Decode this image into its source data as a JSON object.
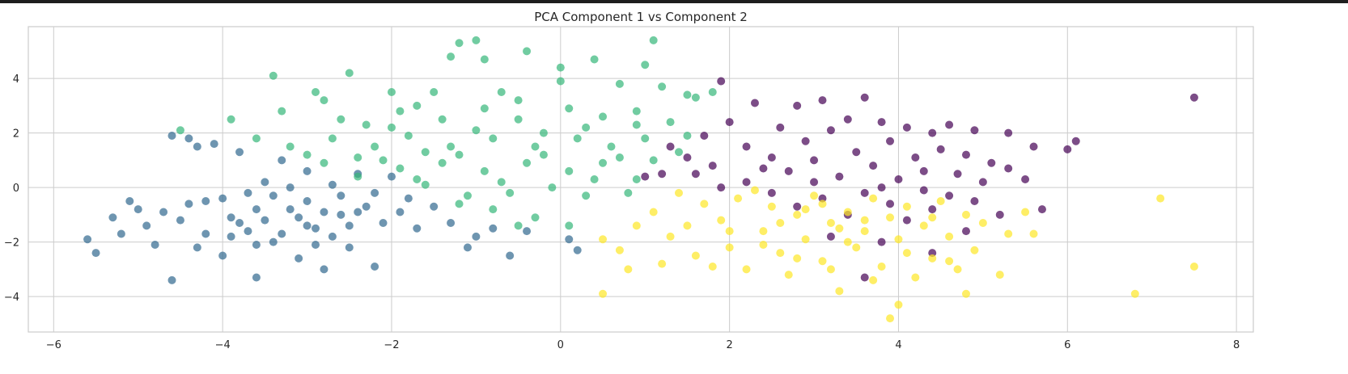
{
  "chart_data": {
    "type": "scatter",
    "title": "PCA Component 1 vs Component 2",
    "xlabel": "",
    "ylabel": "",
    "xlim": [
      -6.3,
      8.2
    ],
    "ylim": [
      -5.3,
      5.9
    ],
    "xticks": [
      -6,
      -4,
      -2,
      0,
      2,
      4,
      6,
      8
    ],
    "yticks": [
      -4,
      -2,
      0,
      2,
      4
    ],
    "xtick_labels": [
      "−6",
      "−4",
      "−2",
      "0",
      "2",
      "4",
      "6",
      "8"
    ],
    "ytick_labels": [
      "−4",
      "−2",
      "0",
      "2",
      "4"
    ],
    "grid": true,
    "legend": "none",
    "colors": [
      "#440154",
      "#31688e",
      "#35b779",
      "#fde725"
    ],
    "series": [
      {
        "color": "#440154",
        "points": [
          [
            2.0,
            2.4
          ],
          [
            2.3,
            3.1
          ],
          [
            2.6,
            2.2
          ],
          [
            2.8,
            3.0
          ],
          [
            3.1,
            3.2
          ],
          [
            3.2,
            2.1
          ],
          [
            3.4,
            2.5
          ],
          [
            3.6,
            3.3
          ],
          [
            3.8,
            2.4
          ],
          [
            4.1,
            2.2
          ],
          [
            4.4,
            2.0
          ],
          [
            4.6,
            2.3
          ],
          [
            4.9,
            2.1
          ],
          [
            5.3,
            2.0
          ],
          [
            5.6,
            1.5
          ],
          [
            6.1,
            1.7
          ],
          [
            6.0,
            1.4
          ],
          [
            7.5,
            3.3
          ],
          [
            1.9,
            3.9
          ],
          [
            1.7,
            1.9
          ],
          [
            1.5,
            1.1
          ],
          [
            1.2,
            0.5
          ],
          [
            1.0,
            0.4
          ],
          [
            1.3,
            1.5
          ],
          [
            1.8,
            0.8
          ],
          [
            2.2,
            1.5
          ],
          [
            2.5,
            1.1
          ],
          [
            2.7,
            0.6
          ],
          [
            2.9,
            1.7
          ],
          [
            3.0,
            1.0
          ],
          [
            3.3,
            0.4
          ],
          [
            3.5,
            1.3
          ],
          [
            3.7,
            0.8
          ],
          [
            3.9,
            1.7
          ],
          [
            4.0,
            0.3
          ],
          [
            4.2,
            1.1
          ],
          [
            4.3,
            0.6
          ],
          [
            4.5,
            1.4
          ],
          [
            4.7,
            0.5
          ],
          [
            4.8,
            1.2
          ],
          [
            5.0,
            0.2
          ],
          [
            5.1,
            0.9
          ],
          [
            5.3,
            0.7
          ],
          [
            5.5,
            0.3
          ],
          [
            5.7,
            -0.8
          ],
          [
            4.6,
            -0.3
          ],
          [
            4.4,
            -0.8
          ],
          [
            4.1,
            -1.2
          ],
          [
            3.9,
            -0.6
          ],
          [
            3.6,
            -0.2
          ],
          [
            3.4,
            -1.0
          ],
          [
            3.1,
            -0.4
          ],
          [
            2.8,
            -0.7
          ],
          [
            2.5,
            -0.2
          ],
          [
            2.2,
            0.2
          ],
          [
            1.9,
            0.0
          ],
          [
            1.6,
            0.5
          ],
          [
            3.2,
            -1.8
          ],
          [
            3.8,
            -2.0
          ],
          [
            4.4,
            -2.4
          ],
          [
            4.8,
            -1.6
          ],
          [
            3.6,
            -3.3
          ],
          [
            4.3,
            -0.1
          ],
          [
            3.0,
            0.2
          ],
          [
            3.8,
            0.0
          ],
          [
            2.4,
            0.7
          ],
          [
            4.9,
            -0.5
          ],
          [
            5.2,
            -1.0
          ]
        ]
      },
      {
        "color": "#31688e",
        "points": [
          [
            -5.6,
            -1.9
          ],
          [
            -5.5,
            -2.4
          ],
          [
            -5.3,
            -1.1
          ],
          [
            -5.1,
            -0.5
          ],
          [
            -4.9,
            -1.4
          ],
          [
            -4.8,
            -2.1
          ],
          [
            -4.6,
            -3.4
          ],
          [
            -4.6,
            1.9
          ],
          [
            -4.4,
            1.8
          ],
          [
            -4.3,
            1.5
          ],
          [
            -4.2,
            -0.5
          ],
          [
            -4.1,
            1.6
          ],
          [
            -4.0,
            -2.5
          ],
          [
            -3.9,
            -1.8
          ],
          [
            -3.8,
            1.3
          ],
          [
            -3.7,
            -0.2
          ],
          [
            -3.6,
            -3.3
          ],
          [
            -3.5,
            0.2
          ],
          [
            -3.4,
            -2.0
          ],
          [
            -3.3,
            1.0
          ],
          [
            -3.2,
            -0.8
          ],
          [
            -3.1,
            -2.6
          ],
          [
            -3.0,
            0.6
          ],
          [
            -2.9,
            -1.5
          ],
          [
            -2.8,
            -3.0
          ],
          [
            -2.7,
            0.1
          ],
          [
            -2.6,
            -1.0
          ],
          [
            -2.5,
            -2.2
          ],
          [
            -2.4,
            0.5
          ],
          [
            -2.3,
            -0.7
          ],
          [
            -2.2,
            -2.9
          ],
          [
            -2.1,
            -1.3
          ],
          [
            -2.0,
            0.4
          ],
          [
            -1.9,
            -0.9
          ],
          [
            -1.7,
            -1.5
          ],
          [
            -1.5,
            -0.7
          ],
          [
            -1.3,
            -1.3
          ],
          [
            -1.1,
            -2.2
          ],
          [
            -1.0,
            -1.8
          ],
          [
            -0.8,
            -1.5
          ],
          [
            -0.6,
            -2.5
          ],
          [
            -0.4,
            -1.6
          ],
          [
            0.1,
            -1.9
          ],
          [
            0.2,
            -2.3
          ],
          [
            -4.5,
            -1.2
          ],
          [
            -4.3,
            -2.2
          ],
          [
            -4.0,
            -0.4
          ],
          [
            -3.9,
            -1.1
          ],
          [
            -3.7,
            -1.6
          ],
          [
            -3.6,
            -0.8
          ],
          [
            -3.5,
            -1.2
          ],
          [
            -3.4,
            -0.3
          ],
          [
            -3.3,
            -1.7
          ],
          [
            -3.2,
            0.0
          ],
          [
            -3.1,
            -1.1
          ],
          [
            -3.0,
            -0.5
          ],
          [
            -2.9,
            -2.1
          ],
          [
            -2.8,
            -0.9
          ],
          [
            -2.7,
            -1.8
          ],
          [
            -2.6,
            -0.3
          ],
          [
            -2.5,
            -1.4
          ],
          [
            -2.4,
            -0.9
          ],
          [
            -3.8,
            -1.3
          ],
          [
            -4.2,
            -1.7
          ],
          [
            -4.7,
            -0.9
          ],
          [
            -5.0,
            -0.8
          ],
          [
            -5.2,
            -1.7
          ],
          [
            -4.4,
            -0.6
          ],
          [
            -3.6,
            -2.1
          ],
          [
            -3.0,
            -1.4
          ],
          [
            -2.2,
            -0.2
          ],
          [
            -1.8,
            -0.4
          ]
        ]
      },
      {
        "color": "#35b779",
        "points": [
          [
            -1.2,
            5.3
          ],
          [
            -1.0,
            5.4
          ],
          [
            -1.3,
            4.8
          ],
          [
            -0.9,
            4.7
          ],
          [
            -0.4,
            5.0
          ],
          [
            0.0,
            4.4
          ],
          [
            0.4,
            4.7
          ],
          [
            1.1,
            5.4
          ],
          [
            1.0,
            4.5
          ],
          [
            -3.4,
            4.1
          ],
          [
            -2.9,
            3.5
          ],
          [
            -2.5,
            4.2
          ],
          [
            -2.0,
            3.5
          ],
          [
            -1.5,
            3.5
          ],
          [
            -0.5,
            3.2
          ],
          [
            0.0,
            3.9
          ],
          [
            0.7,
            3.8
          ],
          [
            1.2,
            3.7
          ],
          [
            1.5,
            3.4
          ],
          [
            1.8,
            3.5
          ],
          [
            -4.5,
            2.1
          ],
          [
            -3.9,
            2.5
          ],
          [
            -3.3,
            2.8
          ],
          [
            -2.8,
            3.2
          ],
          [
            -2.3,
            2.3
          ],
          [
            -1.9,
            2.8
          ],
          [
            -1.4,
            2.5
          ],
          [
            -0.9,
            2.9
          ],
          [
            -0.5,
            2.5
          ],
          [
            0.1,
            2.9
          ],
          [
            0.5,
            2.6
          ],
          [
            0.9,
            2.3
          ],
          [
            1.3,
            2.4
          ],
          [
            -3.6,
            1.8
          ],
          [
            -3.2,
            1.5
          ],
          [
            -2.7,
            1.8
          ],
          [
            -2.2,
            1.5
          ],
          [
            -1.8,
            1.9
          ],
          [
            -1.3,
            1.5
          ],
          [
            -0.8,
            1.8
          ],
          [
            -0.3,
            1.5
          ],
          [
            0.2,
            1.8
          ],
          [
            0.6,
            1.5
          ],
          [
            1.0,
            1.8
          ],
          [
            1.4,
            1.3
          ],
          [
            -2.8,
            0.9
          ],
          [
            -2.4,
            1.1
          ],
          [
            -1.9,
            0.7
          ],
          [
            -1.4,
            0.9
          ],
          [
            -0.9,
            0.6
          ],
          [
            -0.4,
            0.9
          ],
          [
            0.1,
            0.6
          ],
          [
            0.5,
            0.9
          ],
          [
            0.9,
            0.3
          ],
          [
            -1.6,
            0.1
          ],
          [
            -1.1,
            -0.3
          ],
          [
            -0.6,
            -0.2
          ],
          [
            -0.1,
            0.0
          ],
          [
            0.3,
            -0.3
          ],
          [
            -0.8,
            -0.8
          ],
          [
            -0.3,
            -1.1
          ],
          [
            0.1,
            -1.4
          ],
          [
            -1.2,
            -0.6
          ],
          [
            -0.5,
            -1.4
          ],
          [
            -2.6,
            2.5
          ],
          [
            -2.0,
            2.2
          ],
          [
            -1.6,
            1.3
          ],
          [
            -1.0,
            2.1
          ],
          [
            -0.2,
            2.0
          ],
          [
            0.3,
            2.2
          ],
          [
            0.7,
            1.1
          ],
          [
            1.1,
            1.0
          ],
          [
            1.5,
            1.9
          ],
          [
            -2.4,
            0.4
          ],
          [
            -1.7,
            0.3
          ],
          [
            -0.7,
            0.2
          ],
          [
            0.4,
            0.3
          ],
          [
            0.8,
            -0.2
          ],
          [
            -3.0,
            1.2
          ],
          [
            -2.1,
            1.0
          ],
          [
            -1.2,
            1.2
          ],
          [
            -0.2,
            1.2
          ],
          [
            0.9,
            2.8
          ],
          [
            1.6,
            3.3
          ],
          [
            -0.7,
            3.5
          ],
          [
            -1.7,
            3.0
          ]
        ]
      },
      {
        "color": "#fde725",
        "points": [
          [
            1.1,
            -0.9
          ],
          [
            1.4,
            -0.2
          ],
          [
            1.7,
            -0.6
          ],
          [
            1.3,
            -1.8
          ],
          [
            1.6,
            -2.5
          ],
          [
            1.9,
            -1.2
          ],
          [
            2.1,
            -0.4
          ],
          [
            2.0,
            -2.2
          ],
          [
            2.2,
            -3.0
          ],
          [
            2.4,
            -1.6
          ],
          [
            2.5,
            -0.7
          ],
          [
            2.6,
            -2.4
          ],
          [
            2.7,
            -3.2
          ],
          [
            2.8,
            -1.0
          ],
          [
            2.9,
            -1.9
          ],
          [
            3.0,
            -0.3
          ],
          [
            3.1,
            -2.7
          ],
          [
            3.2,
            -1.3
          ],
          [
            3.3,
            -3.8
          ],
          [
            3.4,
            -0.9
          ],
          [
            3.5,
            -2.2
          ],
          [
            3.6,
            -1.6
          ],
          [
            3.7,
            -0.4
          ],
          [
            3.8,
            -2.9
          ],
          [
            3.9,
            -1.1
          ],
          [
            4.0,
            -4.3
          ],
          [
            4.0,
            -1.9
          ],
          [
            4.1,
            -0.7
          ],
          [
            4.2,
            -3.3
          ],
          [
            4.3,
            -1.4
          ],
          [
            4.4,
            -2.6
          ],
          [
            4.5,
            -0.5
          ],
          [
            4.6,
            -1.8
          ],
          [
            4.7,
            -3.0
          ],
          [
            4.8,
            -1.0
          ],
          [
            4.9,
            -2.3
          ],
          [
            5.0,
            -1.3
          ],
          [
            5.2,
            -3.2
          ],
          [
            5.3,
            -1.7
          ],
          [
            5.5,
            -0.9
          ],
          [
            5.6,
            -1.7
          ],
          [
            7.1,
            -0.4
          ],
          [
            6.8,
            -3.9
          ],
          [
            7.5,
            -2.9
          ],
          [
            0.7,
            -2.3
          ],
          [
            0.5,
            -1.9
          ],
          [
            0.8,
            -3.0
          ],
          [
            0.5,
            -3.9
          ],
          [
            3.9,
            -4.8
          ],
          [
            0.9,
            -1.4
          ],
          [
            1.2,
            -2.8
          ],
          [
            2.3,
            -0.1
          ],
          [
            3.1,
            -0.6
          ],
          [
            2.6,
            -1.3
          ],
          [
            3.4,
            -2.0
          ],
          [
            2.0,
            -1.6
          ],
          [
            4.1,
            -2.4
          ],
          [
            3.7,
            -3.4
          ],
          [
            1.8,
            -2.9
          ],
          [
            4.4,
            -1.1
          ],
          [
            2.8,
            -2.6
          ],
          [
            3.6,
            -1.2
          ],
          [
            2.4,
            -2.1
          ],
          [
            3.2,
            -3.0
          ],
          [
            4.8,
            -3.9
          ],
          [
            1.5,
            -1.4
          ],
          [
            2.9,
            -0.8
          ],
          [
            4.6,
            -2.7
          ],
          [
            3.3,
            -1.5
          ]
        ]
      }
    ]
  }
}
